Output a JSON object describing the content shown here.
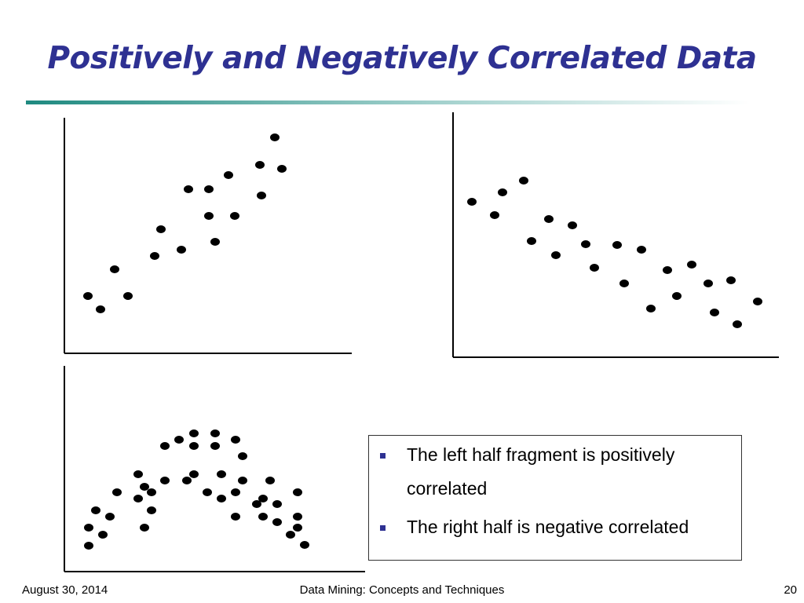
{
  "title": "Positively and Negatively Correlated Data",
  "bullets": [
    "The left half fragment is positively correlated",
    "The right half is negative correlated"
  ],
  "footer": {
    "date": "August 30, 2014",
    "center": "Data Mining: Concepts and Techniques",
    "page": "20"
  }
}
